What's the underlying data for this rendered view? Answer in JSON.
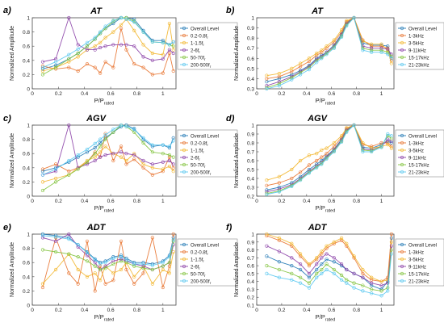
{
  "figure": {
    "panels": [
      {
        "letter": "a)",
        "title": "AT"
      },
      {
        "letter": "b)",
        "title": "AT"
      },
      {
        "letter": "c)",
        "title": "AGV"
      },
      {
        "letter": "d)",
        "title": "AGV"
      },
      {
        "letter": "e)",
        "title": "ADT"
      },
      {
        "letter": "f)",
        "title": "ADT"
      }
    ],
    "colors": [
      "#1f77b4",
      "#e8732f",
      "#f2b52a",
      "#8a3fa6",
      "#7fc23a",
      "#57c7ef"
    ]
  },
  "chart_data": [
    {
      "type": "line",
      "title": "AT",
      "xlabel": "P/P",
      "xlabel_sub": "rated",
      "ylabel": "Normalized Amplitude",
      "xlim": [
        0,
        1.1
      ],
      "ylim": [
        0,
        1.0
      ],
      "xticks": [
        "0",
        "0.2",
        "0.4",
        "0.6",
        "0.8",
        "1"
      ],
      "yticks": [
        "0",
        "0.2",
        "0.4",
        "0.6",
        "0.8",
        "1"
      ],
      "legend_position": "right",
      "x": [
        0.08,
        0.18,
        0.28,
        0.35,
        0.42,
        0.48,
        0.52,
        0.56,
        0.62,
        0.68,
        0.72,
        0.78,
        0.85,
        0.92,
        1.0,
        1.05,
        1.08
      ],
      "series": [
        {
          "name": "Overall Level",
          "values": [
            0.28,
            0.33,
            0.42,
            0.5,
            0.6,
            0.7,
            0.78,
            0.85,
            0.92,
            1.0,
            1.0,
            0.98,
            0.82,
            0.68,
            0.68,
            0.62,
            0.66
          ]
        },
        {
          "name": "0.2-0.8f",
          "name_sub": "r",
          "values": [
            0.32,
            0.28,
            0.3,
            0.25,
            0.35,
            0.3,
            0.22,
            0.38,
            0.3,
            0.85,
            0.55,
            0.35,
            0.3,
            0.2,
            0.22,
            0.5,
            0.25
          ]
        },
        {
          "name": "1-1.5f",
          "name_sub": "r",
          "values": [
            0.25,
            0.3,
            0.38,
            0.45,
            0.55,
            0.6,
            0.65,
            0.72,
            0.8,
            0.9,
            0.98,
            0.82,
            0.62,
            0.5,
            0.48,
            0.92,
            0.55
          ]
        },
        {
          "name": "2-6f",
          "name_sub": "r",
          "values": [
            0.38,
            0.42,
            1.0,
            0.62,
            0.55,
            0.55,
            0.58,
            0.6,
            0.62,
            0.62,
            0.62,
            0.6,
            0.45,
            0.4,
            0.42,
            0.55,
            0.5
          ]
        },
        {
          "name": "50-70f",
          "name_sub": "r",
          "values": [
            0.2,
            0.3,
            0.42,
            0.5,
            0.6,
            0.7,
            0.78,
            0.85,
            0.95,
            1.0,
            1.0,
            0.95,
            0.8,
            0.66,
            0.65,
            0.62,
            0.6
          ]
        },
        {
          "name": "200-500f",
          "name_sub": "r",
          "values": [
            0.3,
            0.38,
            0.48,
            0.56,
            0.65,
            0.72,
            0.8,
            0.88,
            0.96,
            1.0,
            0.98,
            0.94,
            0.8,
            0.66,
            0.65,
            0.62,
            0.66
          ]
        }
      ]
    },
    {
      "type": "line",
      "title": "AT",
      "xlabel": "P/P",
      "xlabel_sub": "rated",
      "ylabel": "Normalized Amplitude",
      "xlim": [
        0,
        1.1
      ],
      "ylim": [
        0.3,
        1.0
      ],
      "xticks": [
        "0",
        "0.2",
        "0.4",
        "0.6",
        "0.8",
        "1"
      ],
      "yticks": [
        "0.3",
        "0.4",
        "0.5",
        "0.6",
        "0.7",
        "0.8",
        "0.9",
        "1"
      ],
      "legend_position": "right",
      "x": [
        0.08,
        0.18,
        0.28,
        0.35,
        0.42,
        0.48,
        0.52,
        0.56,
        0.62,
        0.68,
        0.72,
        0.78,
        0.85,
        0.92,
        1.0,
        1.05,
        1.08
      ],
      "series": [
        {
          "name": "Overall Level",
          "values": [
            0.37,
            0.4,
            0.44,
            0.48,
            0.53,
            0.6,
            0.63,
            0.66,
            0.73,
            0.84,
            0.95,
            1.0,
            0.75,
            0.73,
            0.73,
            0.72,
            0.6
          ]
        },
        {
          "name": "1-3kHz",
          "values": [
            0.4,
            0.42,
            0.47,
            0.52,
            0.57,
            0.63,
            0.66,
            0.7,
            0.76,
            0.86,
            0.96,
            1.0,
            0.78,
            0.72,
            0.72,
            0.7,
            0.58
          ]
        },
        {
          "name": "3-5kHz",
          "values": [
            0.43,
            0.45,
            0.5,
            0.55,
            0.6,
            0.65,
            0.68,
            0.72,
            0.78,
            0.88,
            0.97,
            1.0,
            0.77,
            0.74,
            0.74,
            0.68,
            0.55
          ]
        },
        {
          "name": "9-11kHz",
          "values": [
            0.33,
            0.37,
            0.42,
            0.47,
            0.52,
            0.59,
            0.62,
            0.66,
            0.72,
            0.83,
            0.94,
            1.0,
            0.72,
            0.7,
            0.7,
            0.69,
            0.64
          ]
        },
        {
          "name": "15-17kHz",
          "values": [
            0.31,
            0.35,
            0.41,
            0.46,
            0.51,
            0.58,
            0.61,
            0.65,
            0.71,
            0.82,
            0.93,
            1.0,
            0.7,
            0.68,
            0.68,
            0.66,
            0.62
          ]
        },
        {
          "name": "21-23kHz",
          "values": [
            0.3,
            0.33,
            0.39,
            0.44,
            0.49,
            0.56,
            0.6,
            0.64,
            0.7,
            0.81,
            0.92,
            1.0,
            0.68,
            0.66,
            0.66,
            0.64,
            0.6
          ]
        }
      ]
    },
    {
      "type": "line",
      "title": "AGV",
      "xlabel": "P/P",
      "xlabel_sub": "rated",
      "ylabel": "Normalized Amplitude",
      "xlim": [
        0,
        1.1
      ],
      "ylim": [
        0,
        1.0
      ],
      "xticks": [
        "0",
        "0.2",
        "0.4",
        "0.6",
        "0.8",
        "1"
      ],
      "yticks": [
        "0",
        "0.2",
        "0.4",
        "0.6",
        "0.8",
        "1"
      ],
      "legend_position": "right",
      "x": [
        0.08,
        0.18,
        0.28,
        0.35,
        0.42,
        0.48,
        0.52,
        0.56,
        0.62,
        0.68,
        0.72,
        0.78,
        0.85,
        0.92,
        1.0,
        1.05,
        1.08
      ],
      "series": [
        {
          "name": "Overall Level",
          "values": [
            0.35,
            0.4,
            0.48,
            0.55,
            0.62,
            0.68,
            0.75,
            0.82,
            0.9,
            0.98,
            1.0,
            0.95,
            0.8,
            0.7,
            0.72,
            0.68,
            0.82
          ]
        },
        {
          "name": "0.2-0.8f",
          "name_sub": "r",
          "values": [
            0.38,
            0.45,
            0.35,
            0.4,
            0.48,
            0.62,
            0.55,
            0.88,
            0.5,
            0.7,
            0.45,
            0.52,
            0.4,
            0.3,
            0.35,
            0.55,
            0.4
          ]
        },
        {
          "name": "1-1.5f",
          "name_sub": "r",
          "values": [
            0.2,
            0.25,
            0.3,
            0.4,
            0.5,
            0.55,
            0.62,
            0.7,
            0.6,
            0.55,
            0.5,
            0.6,
            0.45,
            0.4,
            0.38,
            0.42,
            0.35
          ]
        },
        {
          "name": "2-6f",
          "name_sub": "r",
          "values": [
            0.3,
            0.35,
            1.0,
            0.4,
            0.45,
            0.5,
            0.55,
            0.58,
            0.6,
            0.62,
            0.6,
            0.58,
            0.5,
            0.45,
            0.48,
            0.5,
            0.45
          ]
        },
        {
          "name": "50-70f",
          "name_sub": "r",
          "values": [
            0.08,
            0.2,
            0.3,
            0.38,
            0.48,
            0.6,
            0.7,
            0.8,
            0.9,
            1.0,
            0.98,
            0.9,
            0.75,
            0.62,
            0.6,
            0.58,
            0.55
          ]
        },
        {
          "name": "200-500f",
          "name_sub": "r",
          "values": [
            0.3,
            0.38,
            0.5,
            0.58,
            0.66,
            0.74,
            0.8,
            0.86,
            0.94,
            1.0,
            0.98,
            0.94,
            0.82,
            0.72,
            0.72,
            0.7,
            0.78
          ]
        }
      ]
    },
    {
      "type": "line",
      "title": "AGV",
      "xlabel": "P/P",
      "xlabel_sub": "rated",
      "ylabel": "Normalized Amplitude",
      "xlim": [
        0,
        1.1
      ],
      "ylim": [
        0.2,
        1.0
      ],
      "xticks": [
        "0",
        "0.2",
        "0.4",
        "0.6",
        "0.8",
        "1"
      ],
      "yticks": [
        "0.2",
        "0.3",
        "0.4",
        "0.5",
        "0.6",
        "0.7",
        "0.8",
        "0.9",
        "1"
      ],
      "legend_position": "right",
      "x": [
        0.08,
        0.18,
        0.28,
        0.35,
        0.42,
        0.48,
        0.52,
        0.56,
        0.62,
        0.68,
        0.72,
        0.78,
        0.85,
        0.92,
        1.0,
        1.05,
        1.08
      ],
      "series": [
        {
          "name": "Overall Level",
          "values": [
            0.27,
            0.3,
            0.35,
            0.42,
            0.5,
            0.56,
            0.6,
            0.65,
            0.73,
            0.84,
            0.95,
            1.0,
            0.75,
            0.74,
            0.78,
            0.82,
            0.8
          ]
        },
        {
          "name": "1-3kHz",
          "values": [
            0.32,
            0.35,
            0.4,
            0.47,
            0.55,
            0.6,
            0.64,
            0.68,
            0.76,
            0.86,
            0.96,
            1.0,
            0.78,
            0.76,
            0.8,
            0.8,
            0.76
          ]
        },
        {
          "name": "3-5kHz",
          "values": [
            0.38,
            0.42,
            0.5,
            0.6,
            0.66,
            0.68,
            0.72,
            0.74,
            0.8,
            0.88,
            0.97,
            1.0,
            0.8,
            0.74,
            0.76,
            0.78,
            0.74
          ]
        },
        {
          "name": "9-11kHz",
          "values": [
            0.25,
            0.28,
            0.33,
            0.4,
            0.48,
            0.54,
            0.58,
            0.64,
            0.72,
            0.83,
            0.94,
            1.0,
            0.73,
            0.72,
            0.76,
            0.84,
            0.82
          ]
        },
        {
          "name": "15-17kHz",
          "values": [
            0.23,
            0.26,
            0.32,
            0.39,
            0.47,
            0.53,
            0.57,
            0.63,
            0.71,
            0.82,
            0.93,
            1.0,
            0.72,
            0.71,
            0.76,
            0.88,
            0.85
          ]
        },
        {
          "name": "21-23kHz",
          "values": [
            0.22,
            0.25,
            0.31,
            0.38,
            0.46,
            0.52,
            0.56,
            0.62,
            0.7,
            0.81,
            0.92,
            1.0,
            0.7,
            0.7,
            0.75,
            0.9,
            0.88
          ]
        }
      ]
    },
    {
      "type": "line",
      "title": "ADT",
      "xlabel": "P/P",
      "xlabel_sub": "rated",
      "ylabel": "Normalized Amplitude",
      "xlim": [
        0,
        1.1
      ],
      "ylim": [
        0,
        1.0
      ],
      "xticks": [
        "0",
        "0.2",
        "0.4",
        "0.6",
        "0.8",
        "1"
      ],
      "yticks": [
        "0",
        "0.2",
        "0.4",
        "0.6",
        "0.8",
        "1"
      ],
      "legend_position": "right",
      "x": [
        0.08,
        0.18,
        0.28,
        0.35,
        0.42,
        0.48,
        0.52,
        0.56,
        0.62,
        0.68,
        0.72,
        0.78,
        0.85,
        0.92,
        1.0,
        1.05,
        1.08
      ],
      "series": [
        {
          "name": "Overall Level",
          "values": [
            1.0,
            0.98,
            0.95,
            0.85,
            0.75,
            0.65,
            0.6,
            0.62,
            0.68,
            0.7,
            0.66,
            0.6,
            0.6,
            0.58,
            0.62,
            0.7,
            0.95
          ]
        },
        {
          "name": "0.2-0.8f",
          "name_sub": "r",
          "values": [
            0.25,
            0.95,
            0.45,
            0.3,
            0.9,
            0.2,
            0.55,
            0.3,
            0.35,
            0.9,
            0.5,
            0.3,
            0.45,
            0.95,
            0.25,
            0.55,
            1.0
          ]
        },
        {
          "name": "1-1.5f",
          "name_sub": "r",
          "values": [
            0.3,
            0.5,
            0.72,
            0.5,
            0.4,
            0.45,
            0.35,
            0.55,
            0.45,
            0.5,
            0.6,
            0.4,
            0.55,
            0.3,
            0.5,
            0.45,
            0.75
          ]
        },
        {
          "name": "2-6f",
          "name_sub": "r",
          "values": [
            0.95,
            0.9,
            1.0,
            0.82,
            0.7,
            0.6,
            0.5,
            0.55,
            0.62,
            0.65,
            0.62,
            0.58,
            0.55,
            0.5,
            0.55,
            0.6,
            0.85
          ]
        },
        {
          "name": "50-70f",
          "name_sub": "r",
          "values": [
            0.78,
            0.75,
            0.72,
            0.68,
            0.62,
            0.55,
            0.5,
            0.52,
            0.58,
            0.62,
            0.6,
            0.55,
            0.52,
            0.5,
            0.55,
            0.6,
            0.9
          ]
        },
        {
          "name": "200-500f",
          "name_sub": "r",
          "values": [
            0.98,
            0.96,
            0.93,
            0.85,
            0.74,
            0.64,
            0.58,
            0.6,
            0.66,
            0.68,
            0.64,
            0.58,
            0.58,
            0.56,
            0.6,
            0.68,
            0.92
          ]
        }
      ]
    },
    {
      "type": "line",
      "title": "ADT",
      "xlabel": "P/P",
      "xlabel_sub": "rated",
      "ylabel": "Normalized Amplitude",
      "xlim": [
        0,
        1.1
      ],
      "ylim": [
        0.1,
        1.0
      ],
      "xticks": [
        "0",
        "0.2",
        "0.4",
        "0.6",
        "0.8",
        "1"
      ],
      "yticks": [
        "0.1",
        "0.2",
        "0.3",
        "0.4",
        "0.5",
        "0.6",
        "0.7",
        "0.8",
        "0.9",
        "1"
      ],
      "legend_position": "right",
      "x": [
        0.08,
        0.18,
        0.28,
        0.35,
        0.42,
        0.48,
        0.52,
        0.56,
        0.62,
        0.68,
        0.72,
        0.78,
        0.85,
        0.92,
        1.0,
        1.05,
        1.08
      ],
      "series": [
        {
          "name": "Overall Level",
          "values": [
            0.72,
            0.65,
            0.6,
            0.55,
            0.45,
            0.55,
            0.62,
            0.68,
            0.65,
            0.6,
            0.55,
            0.5,
            0.45,
            0.35,
            0.3,
            0.4,
            0.95
          ]
        },
        {
          "name": "1-3kHz",
          "values": [
            0.98,
            0.92,
            0.85,
            0.72,
            0.6,
            0.68,
            0.75,
            0.82,
            0.88,
            0.92,
            0.85,
            0.7,
            0.5,
            0.42,
            0.4,
            0.45,
            1.0
          ]
        },
        {
          "name": "3-5kHz",
          "values": [
            1.0,
            0.95,
            0.88,
            0.75,
            0.62,
            0.7,
            0.78,
            0.85,
            0.9,
            0.95,
            0.88,
            0.72,
            0.55,
            0.45,
            0.4,
            0.42,
            0.9
          ]
        },
        {
          "name": "9-11kHz",
          "values": [
            0.85,
            0.78,
            0.7,
            0.62,
            0.5,
            0.62,
            0.7,
            0.75,
            0.7,
            0.62,
            0.55,
            0.5,
            0.45,
            0.38,
            0.35,
            0.38,
            0.85
          ]
        },
        {
          "name": "15-17kHz",
          "values": [
            0.6,
            0.55,
            0.5,
            0.45,
            0.38,
            0.5,
            0.55,
            0.62,
            0.55,
            0.48,
            0.42,
            0.38,
            0.35,
            0.3,
            0.28,
            0.32,
            0.8
          ]
        },
        {
          "name": "21-23kHz",
          "values": [
            0.5,
            0.45,
            0.42,
            0.38,
            0.32,
            0.45,
            0.5,
            0.55,
            0.5,
            0.42,
            0.38,
            0.32,
            0.28,
            0.25,
            0.22,
            0.28,
            0.75
          ]
        }
      ]
    }
  ]
}
